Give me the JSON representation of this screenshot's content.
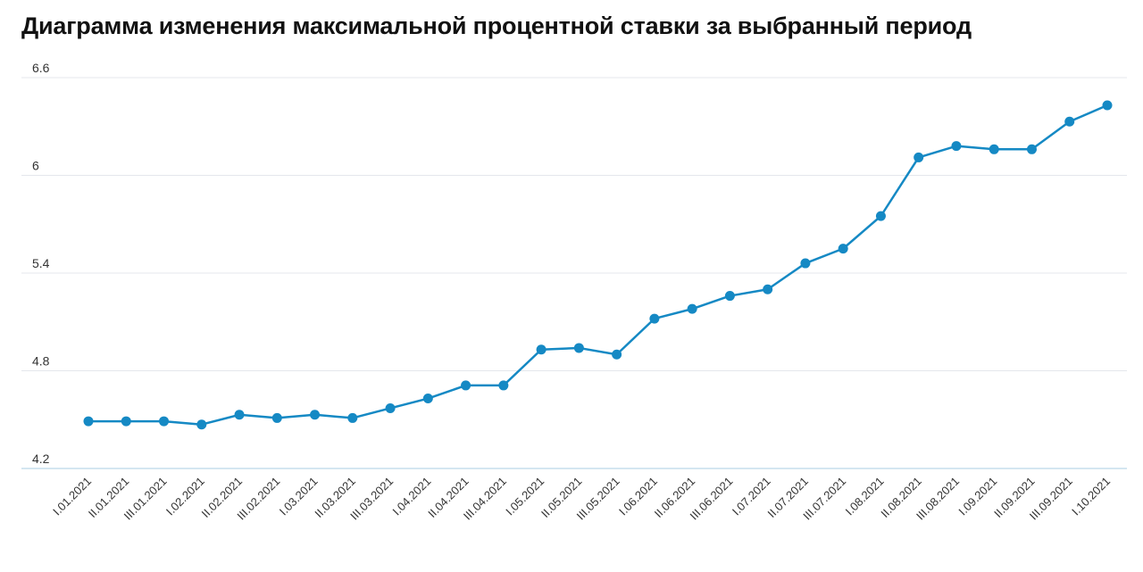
{
  "chart_data": {
    "type": "line",
    "title": "Диаграмма изменения максимальной процентной ставки за выбранный период",
    "xlabel": "",
    "ylabel": "",
    "ylim": [
      4.2,
      6.6
    ],
    "yticks": [
      "4.2",
      "4.8",
      "5.4",
      "6",
      "6.6"
    ],
    "categories": [
      "I.01.2021",
      "II.01.2021",
      "III.01.2021",
      "I.02.2021",
      "II.02.2021",
      "III.02.2021",
      "I.03.2021",
      "II.03.2021",
      "III.03.2021",
      "I.04.2021",
      "II.04.2021",
      "III.04.2021",
      "I.05.2021",
      "II.05.2021",
      "III.05.2021",
      "I.06.2021",
      "II.06.2021",
      "III.06.2021",
      "I.07.2021",
      "II.07.2021",
      "III.07.2021",
      "I.08.2021",
      "II.08.2021",
      "III.08.2021",
      "I.09.2021",
      "II.09.2021",
      "III.09.2021",
      "I.10.2021"
    ],
    "series": [
      {
        "values": [
          4.49,
          4.49,
          4.49,
          4.47,
          4.53,
          4.51,
          4.53,
          4.51,
          4.57,
          4.63,
          4.71,
          4.71,
          4.93,
          4.94,
          4.9,
          5.12,
          5.18,
          5.26,
          5.3,
          5.46,
          5.55,
          5.75,
          6.11,
          6.18,
          6.16,
          6.16,
          6.33,
          6.43
        ]
      }
    ],
    "grid": true,
    "colors": {
      "line": "#1589c4",
      "grid": "#e4e7ec",
      "axis": "#a9cde3"
    }
  }
}
